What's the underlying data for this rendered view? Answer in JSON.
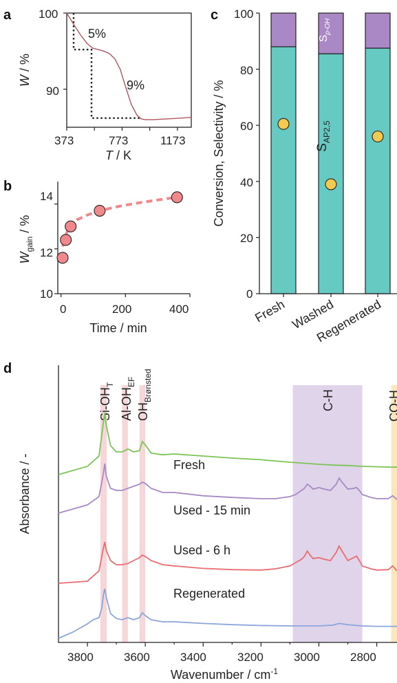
{
  "colors": {
    "tga_curve": "#b0555f",
    "kinetics_marker": "#f0888c",
    "kinetics_fit": "#f0888c",
    "selectivity_ap25": "#66c9c2",
    "selectivity_poh": "#aa88c6",
    "conversion_marker": "#f4c950",
    "ir_fresh": "#7cc456",
    "ir_used15": "#a789c4",
    "ir_used6h": "#e86c70",
    "ir_regen": "#8aa6db",
    "band_oh": "#f6cfd2",
    "band_ch": "#d9cde6",
    "band_coh": "#fbe2b0"
  },
  "panels": {
    "a": {
      "label": "a",
      "ylabel_sym": "W",
      "ylabel_unit": " / %",
      "xlabel_sym": "T",
      "xlabel_unit": " / K",
      "xticks": [
        "373",
        "773",
        "1173"
      ],
      "yticks": [
        "90",
        "100"
      ],
      "step1": "5%",
      "step2": "9%"
    },
    "b": {
      "label": "b",
      "ylabel_sym": "W",
      "ylabel_sub": "gain",
      "ylabel_unit": " / %",
      "xlabel": "Time / min",
      "xticks": [
        "0",
        "200",
        "400"
      ],
      "yticks": [
        "10",
        "12",
        "14"
      ]
    },
    "c": {
      "label": "c",
      "ylabel": "Conversion, Selectivity / %",
      "yticks": [
        "0",
        "20",
        "40",
        "60",
        "80",
        "100"
      ],
      "categories": [
        "Fresh",
        "Washed",
        "Regenerated"
      ],
      "s_ap_main": "S",
      "s_ap_sub": "AP2,5",
      "s_poh_main": "S",
      "s_poh_sub": "p-OH"
    },
    "d": {
      "label": "d",
      "ylabel": "Absorbance / -",
      "xlabel": "Wavenumber / cm",
      "xlabel_sup": "-1",
      "xticks": [
        "3800",
        "3600",
        "3400",
        "3200",
        "3000",
        "2800"
      ],
      "band_sioh": "Si-OH",
      "band_sioh_sub": "T",
      "band_aloh": "Al-OH",
      "band_aloh_sub": "EF",
      "band_ohb": "OH",
      "band_ohb_sub": "Brønsted",
      "band_ch": "C-H",
      "band_coh": "CO-H",
      "trace_fresh": "Fresh",
      "trace_used15": "Used - 15 min",
      "trace_used6h": "Used - 6 h",
      "trace_regen": "Regenerated"
    }
  },
  "chart_data": [
    {
      "panel": "a",
      "type": "line",
      "xlabel": "T / K",
      "ylabel": "W / %",
      "xlim": [
        373,
        1273
      ],
      "ylim": [
        85,
        100
      ],
      "x": [
        373,
        420,
        470,
        520,
        560,
        600,
        640,
        680,
        720,
        760,
        800,
        840,
        880,
        910,
        940,
        1000,
        1100,
        1200,
        1273
      ],
      "y": [
        100,
        98.6,
        97.2,
        96.0,
        95.4,
        95.2,
        95.0,
        94.7,
        94.0,
        92.6,
        90.2,
        88.0,
        86.6,
        86.1,
        86.0,
        86.0,
        86.1,
        86.2,
        86.3
      ],
      "step_guides": [
        {
          "label": "5%",
          "from_y": 100,
          "to_y": 95.2
        },
        {
          "label": "9%",
          "from_y": 95.2,
          "to_y": 86.2
        }
      ]
    },
    {
      "panel": "b",
      "type": "scatter",
      "xlabel": "Time / min",
      "ylabel": "W_gain / %",
      "xlim": [
        -10,
        400
      ],
      "ylim": [
        10,
        15
      ],
      "x": [
        5,
        15,
        30,
        120,
        360
      ],
      "y": [
        11.6,
        12.4,
        13.0,
        13.7,
        14.3
      ],
      "fit": {
        "x": [
          5,
          10,
          20,
          30,
          50,
          80,
          120,
          180,
          240,
          300,
          360
        ],
        "y": [
          12.1,
          12.4,
          12.8,
          13.05,
          13.3,
          13.5,
          13.7,
          13.9,
          14.05,
          14.18,
          14.3
        ]
      }
    },
    {
      "panel": "c",
      "type": "bar",
      "ylabel": "Conversion, Selectivity / %",
      "ylim": [
        0,
        100
      ],
      "categories": [
        "Fresh",
        "Washed",
        "Regenerated"
      ],
      "series": [
        {
          "name": "S_AP2,5",
          "values": [
            88,
            85.5,
            87.5
          ]
        },
        {
          "name": "S_p-OH",
          "values": [
            12,
            14.5,
            12.5
          ]
        }
      ],
      "conversion": [
        60.5,
        39,
        56
      ]
    },
    {
      "panel": "d",
      "type": "line",
      "xlabel": "Wavenumber / cm-1",
      "ylabel": "Absorbance / -",
      "xlim": [
        3900,
        2730
      ],
      "series": [
        {
          "name": "Fresh",
          "x": [
            3900,
            3800,
            3760,
            3745,
            3740,
            3735,
            3720,
            3700,
            3680,
            3660,
            3640,
            3620,
            3610,
            3600,
            3580,
            3540,
            3500,
            3400,
            3300,
            3200,
            3100,
            3000,
            2950,
            2900,
            2850,
            2800,
            2750,
            2730
          ],
          "y": [
            0.0,
            0.2,
            0.45,
            1.25,
            1.5,
            1.2,
            0.7,
            0.55,
            0.55,
            0.62,
            0.55,
            0.58,
            0.8,
            0.72,
            0.52,
            0.48,
            0.5,
            0.45,
            0.4,
            0.36,
            0.3,
            0.25,
            0.23,
            0.22,
            0.2,
            0.19,
            0.18,
            0.18
          ]
        },
        {
          "name": "Used - 15 min",
          "x": [
            3900,
            3800,
            3760,
            3745,
            3740,
            3735,
            3720,
            3700,
            3680,
            3660,
            3640,
            3620,
            3610,
            3600,
            3580,
            3540,
            3500,
            3400,
            3300,
            3200,
            3150,
            3100,
            3080,
            3060,
            3050,
            3040,
            3030,
            3020,
            3000,
            2980,
            2960,
            2940,
            2930,
            2920,
            2900,
            2880,
            2870,
            2860,
            2850,
            2820,
            2800,
            2760,
            2745,
            2730
          ],
          "y": [
            0.0,
            0.2,
            0.4,
            0.95,
            1.2,
            0.9,
            0.6,
            0.55,
            0.55,
            0.6,
            0.65,
            0.7,
            0.75,
            0.72,
            0.6,
            0.5,
            0.5,
            0.42,
            0.38,
            0.35,
            0.35,
            0.4,
            0.45,
            0.55,
            0.6,
            0.7,
            0.65,
            0.58,
            0.62,
            0.58,
            0.55,
            0.7,
            0.85,
            0.75,
            0.58,
            0.6,
            0.62,
            0.55,
            0.45,
            0.38,
            0.35,
            0.35,
            0.42,
            0.33
          ]
        },
        {
          "name": "Used - 6 h",
          "x": [
            3900,
            3800,
            3760,
            3745,
            3740,
            3735,
            3720,
            3700,
            3680,
            3660,
            3640,
            3620,
            3610,
            3600,
            3580,
            3540,
            3500,
            3400,
            3300,
            3200,
            3150,
            3100,
            3080,
            3060,
            3050,
            3040,
            3030,
            3020,
            3000,
            2980,
            2960,
            2940,
            2930,
            2920,
            2900,
            2880,
            2870,
            2860,
            2850,
            2820,
            2800,
            2760,
            2745,
            2730
          ],
          "y": [
            0.0,
            0.05,
            0.3,
            0.85,
            1.0,
            0.8,
            0.55,
            0.45,
            0.45,
            0.48,
            0.55,
            0.62,
            0.68,
            0.65,
            0.55,
            0.45,
            0.42,
            0.36,
            0.33,
            0.32,
            0.35,
            0.42,
            0.5,
            0.58,
            0.65,
            0.78,
            0.68,
            0.6,
            0.62,
            0.58,
            0.55,
            0.75,
            0.9,
            0.78,
            0.55,
            0.62,
            0.66,
            0.55,
            0.42,
            0.35,
            0.32,
            0.33,
            0.42,
            0.3
          ]
        },
        {
          "name": "Regenerated",
          "x": [
            3900,
            3850,
            3800,
            3780,
            3760,
            3750,
            3745,
            3740,
            3735,
            3720,
            3700,
            3680,
            3660,
            3640,
            3620,
            3610,
            3600,
            3580,
            3540,
            3500,
            3400,
            3300,
            3200,
            3100,
            3000,
            2950,
            2930,
            2900,
            2850,
            2800,
            2750,
            2730
          ],
          "y": [
            0.0,
            0.15,
            0.35,
            0.45,
            0.5,
            0.75,
            1.05,
            1.2,
            1.0,
            0.6,
            0.48,
            0.45,
            0.5,
            0.45,
            0.5,
            0.62,
            0.55,
            0.45,
            0.4,
            0.4,
            0.36,
            0.33,
            0.31,
            0.3,
            0.3,
            0.32,
            0.36,
            0.33,
            0.3,
            0.29,
            0.29,
            0.29
          ]
        }
      ],
      "bands": [
        {
          "label": "Si-OH_T",
          "from": 3755,
          "to": 3733
        },
        {
          "label": "Al-OH_EF",
          "from": 3680,
          "to": 3660
        },
        {
          "label": "OH_Brønsted",
          "from": 3620,
          "to": 3600
        },
        {
          "label": "C-H",
          "from": 3090,
          "to": 2850
        },
        {
          "label": "CO-H",
          "from": 2750,
          "to": 2730
        }
      ]
    }
  ]
}
